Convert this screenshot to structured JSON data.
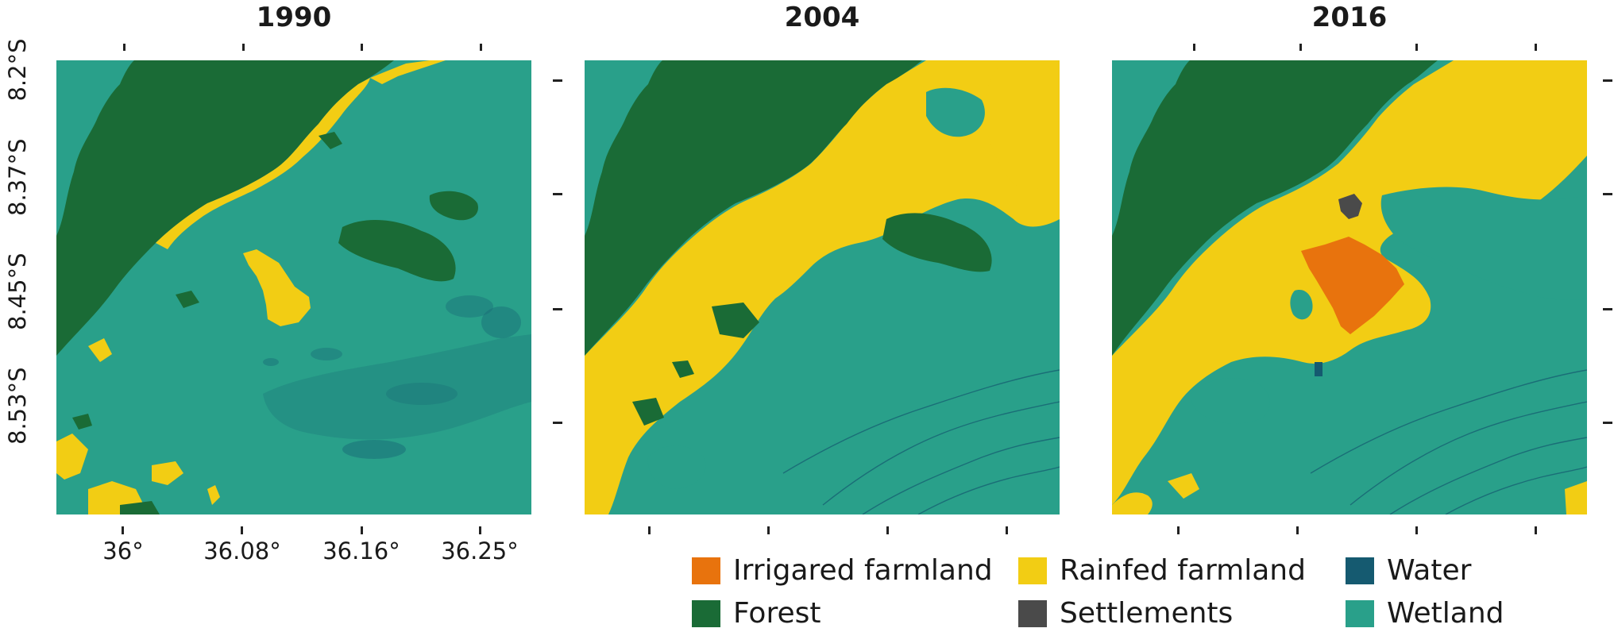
{
  "panels": [
    {
      "year": "1990",
      "scene": "s1990"
    },
    {
      "year": "2004",
      "scene": "s2004"
    },
    {
      "year": "2016",
      "scene": "s2016"
    }
  ],
  "y_axis": {
    "labels": [
      "8.2°S",
      "8.37°S",
      "8.45°S",
      "8.53°S"
    ]
  },
  "x_axis": {
    "labels": [
      "36°",
      "36.08°",
      "36.16°",
      "36.25°"
    ]
  },
  "legend": [
    {
      "label": "Irrigared farmland",
      "color": "#e8730d"
    },
    {
      "label": "Rainfed farmland",
      "color": "#f2cd14"
    },
    {
      "label": "Water",
      "color": "#155a70"
    },
    {
      "label": "Forest",
      "color": "#1a6b36"
    },
    {
      "label": "Settlements",
      "color": "#4a4a4a"
    },
    {
      "label": "Wetland",
      "color": "#29a08a"
    }
  ]
}
